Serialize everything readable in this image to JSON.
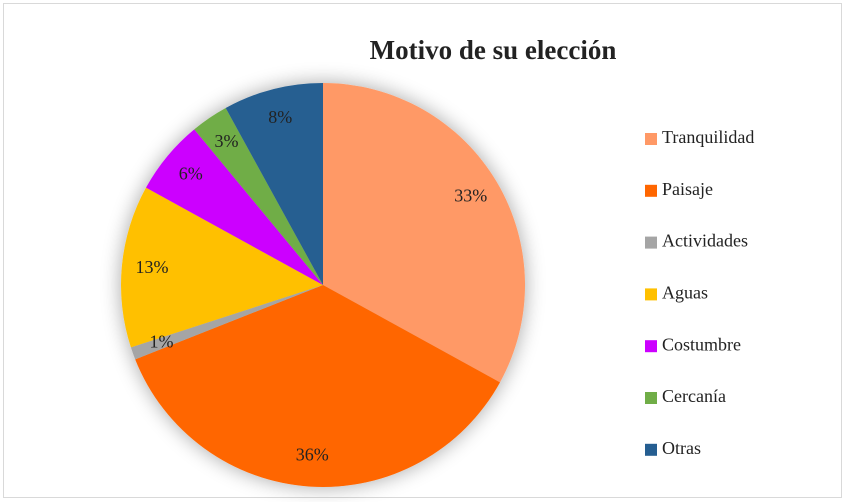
{
  "chart_data": {
    "type": "pie",
    "title": "Motivo de su elección",
    "categories": [
      "Tranquilidad",
      "Paisaje",
      "Actividades",
      "Aguas",
      "Costumbre",
      "Cercanía",
      "Otras"
    ],
    "values": [
      33,
      36,
      1,
      13,
      6,
      3,
      8
    ],
    "value_labels": [
      "33%",
      "36%",
      "1%",
      "13%",
      "6%",
      "3%",
      "8%"
    ],
    "colors": [
      "#FF9966",
      "#FF6600",
      "#A5A5A5",
      "#FFC000",
      "#CC00FF",
      "#70AD47",
      "#255E91"
    ],
    "legend": "right"
  }
}
